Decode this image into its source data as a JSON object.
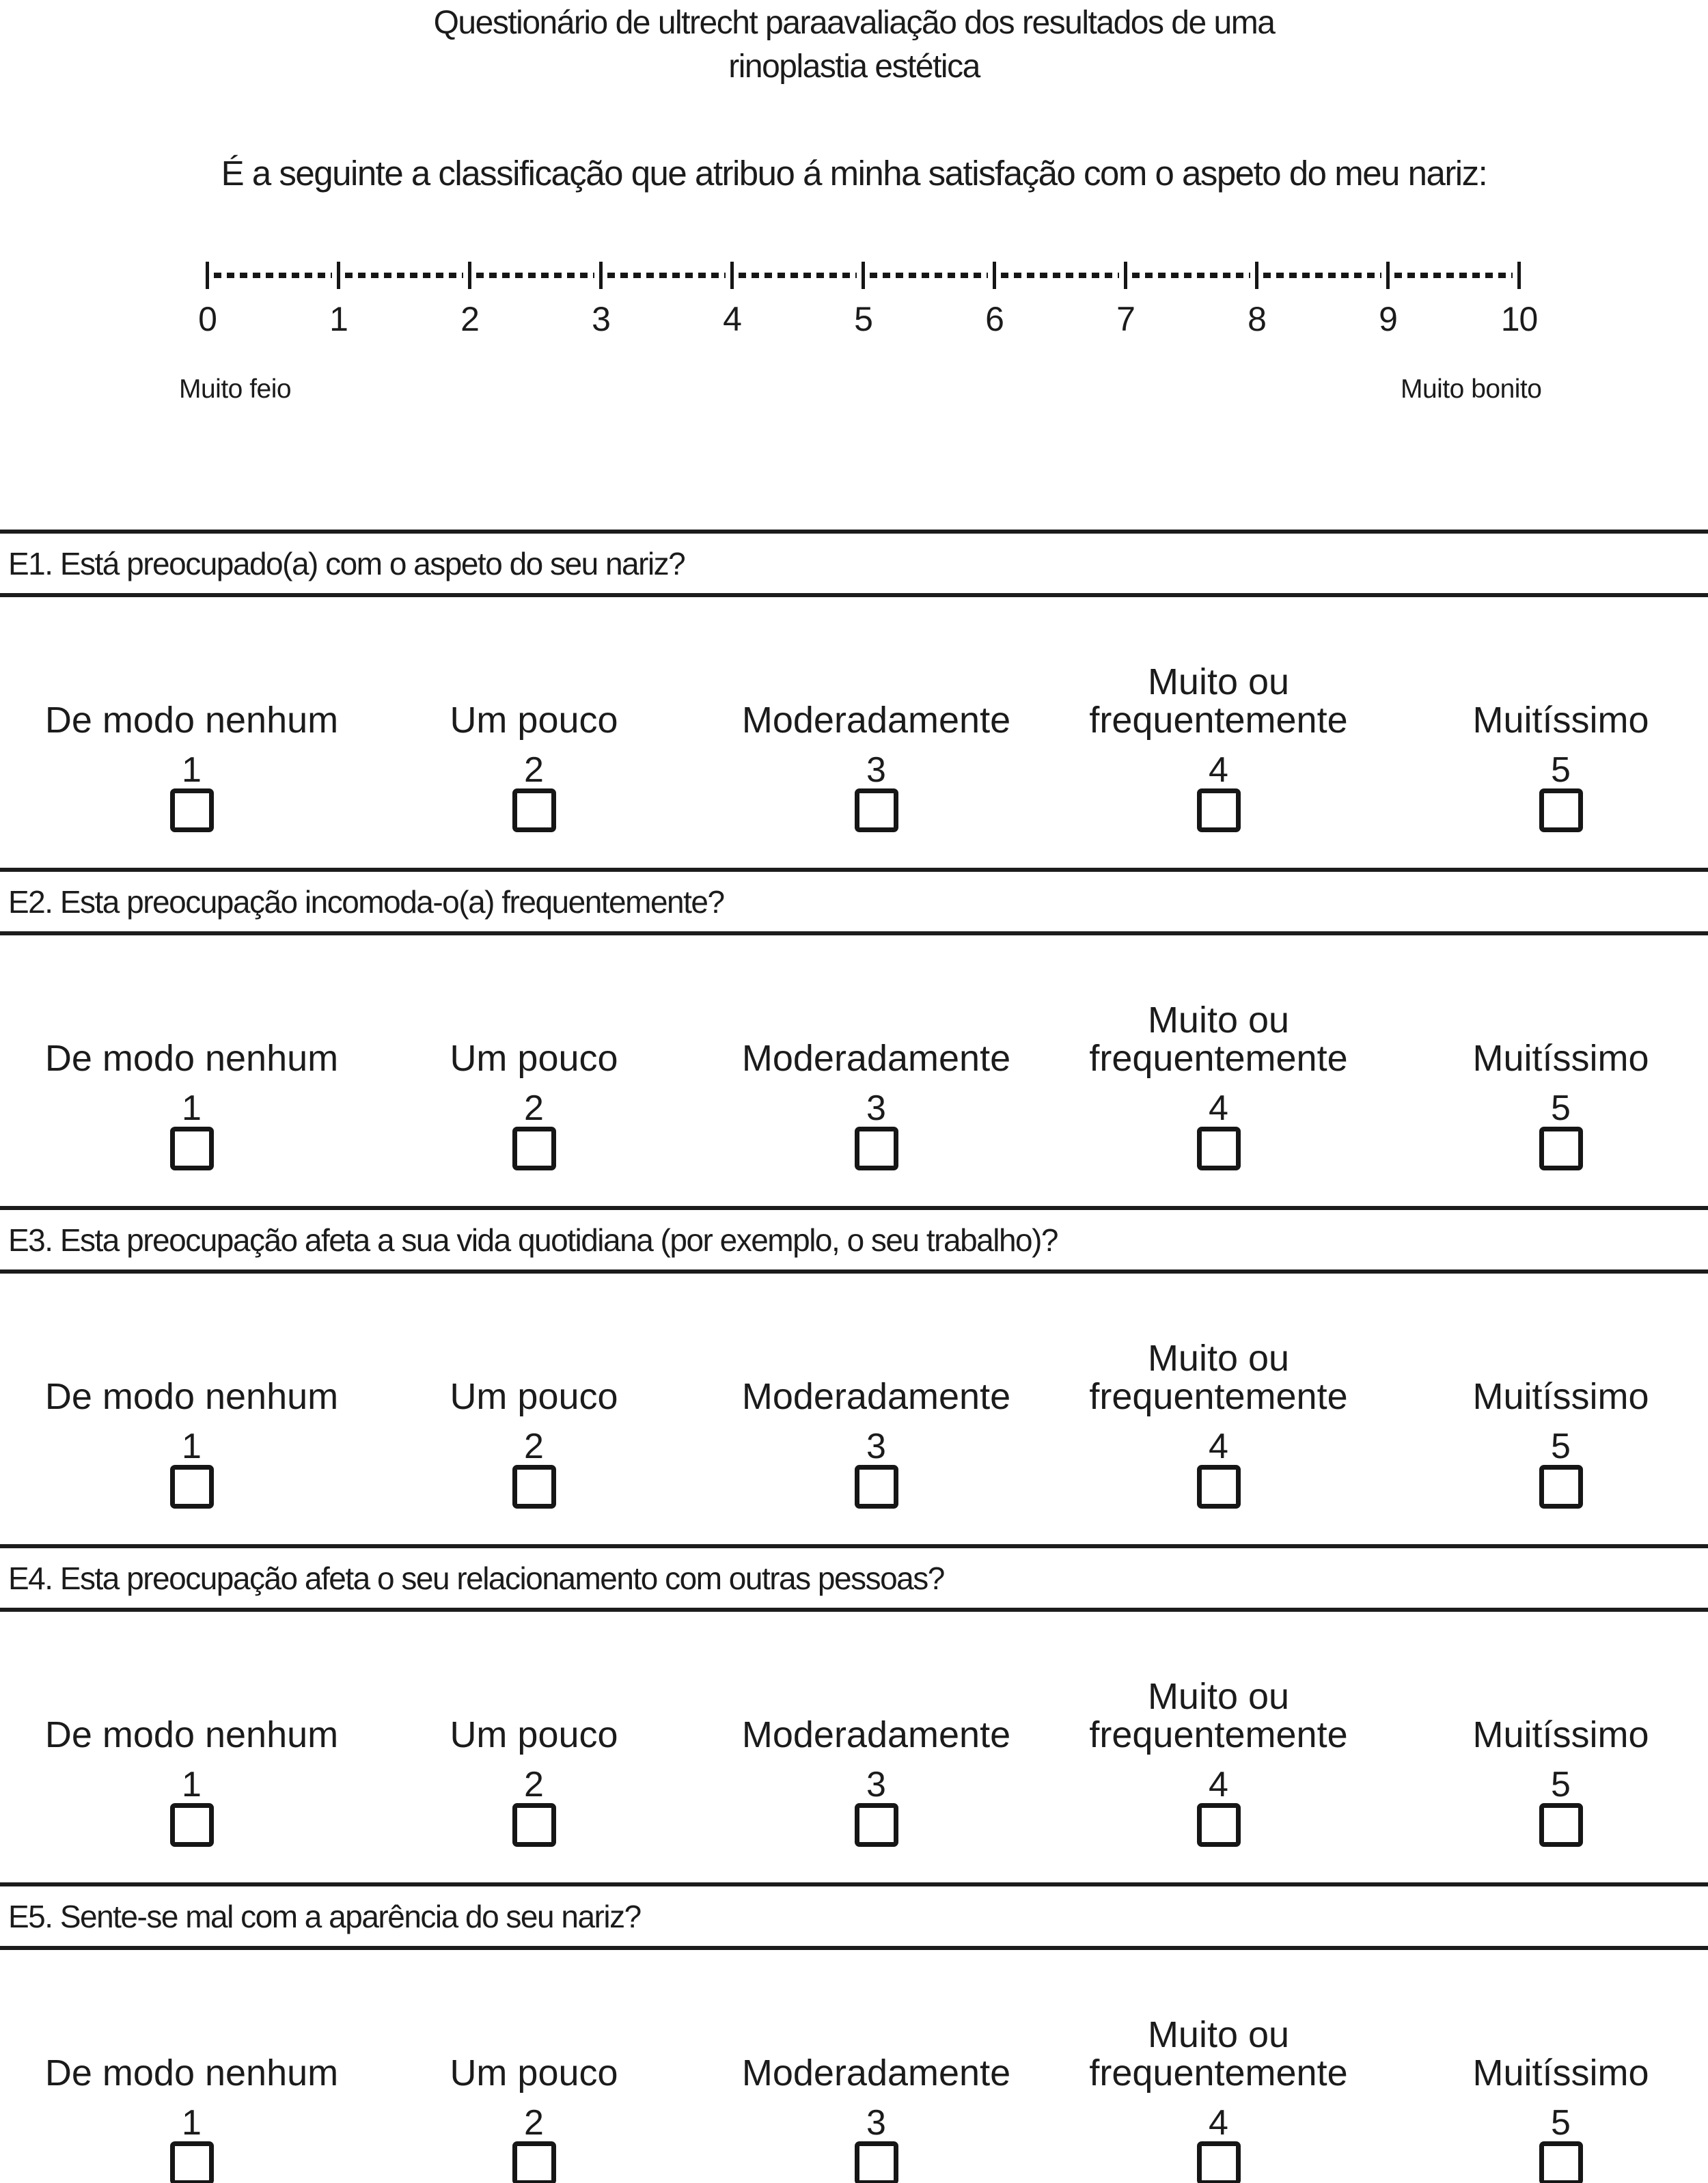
{
  "title": {
    "line1": "Questionário de ultrecht paraavaliação dos resultados de uma",
    "line2": "rinoplastia estética"
  },
  "intro": "É a seguinte a classificação que atribuo á minha satisfação com o aspeto do meu nariz:",
  "scale": {
    "ticks": [
      "0",
      "1",
      "2",
      "3",
      "4",
      "5",
      "6",
      "7",
      "8",
      "9",
      "10"
    ],
    "left_label": "Muito feio",
    "right_label": "Muito bonito"
  },
  "response_options": [
    {
      "label": "De modo nenhum",
      "value": "1"
    },
    {
      "label": "Um pouco",
      "value": "2"
    },
    {
      "label": "Moderadamente",
      "value": "3"
    },
    {
      "label": "Muito ou frequentemente",
      "value": "4"
    },
    {
      "label": "Muitíssimo",
      "value": "5"
    }
  ],
  "questions": [
    {
      "id": "E1",
      "text": "E1. Está preocupado(a) com o aspeto do seu nariz?"
    },
    {
      "id": "E2",
      "text": "E2. Esta preocupação incomoda-o(a) frequentemente?"
    },
    {
      "id": "E3",
      "text": "E3. Esta preocupação afeta a sua vida quotidiana (por exemplo, o seu trabalho)?"
    },
    {
      "id": "E4",
      "text": "E4. Esta preocupação afeta o seu relacionamento com outras pessoas?"
    },
    {
      "id": "E5",
      "text": "E5. Sente-se mal com a aparência do seu nariz?"
    }
  ]
}
